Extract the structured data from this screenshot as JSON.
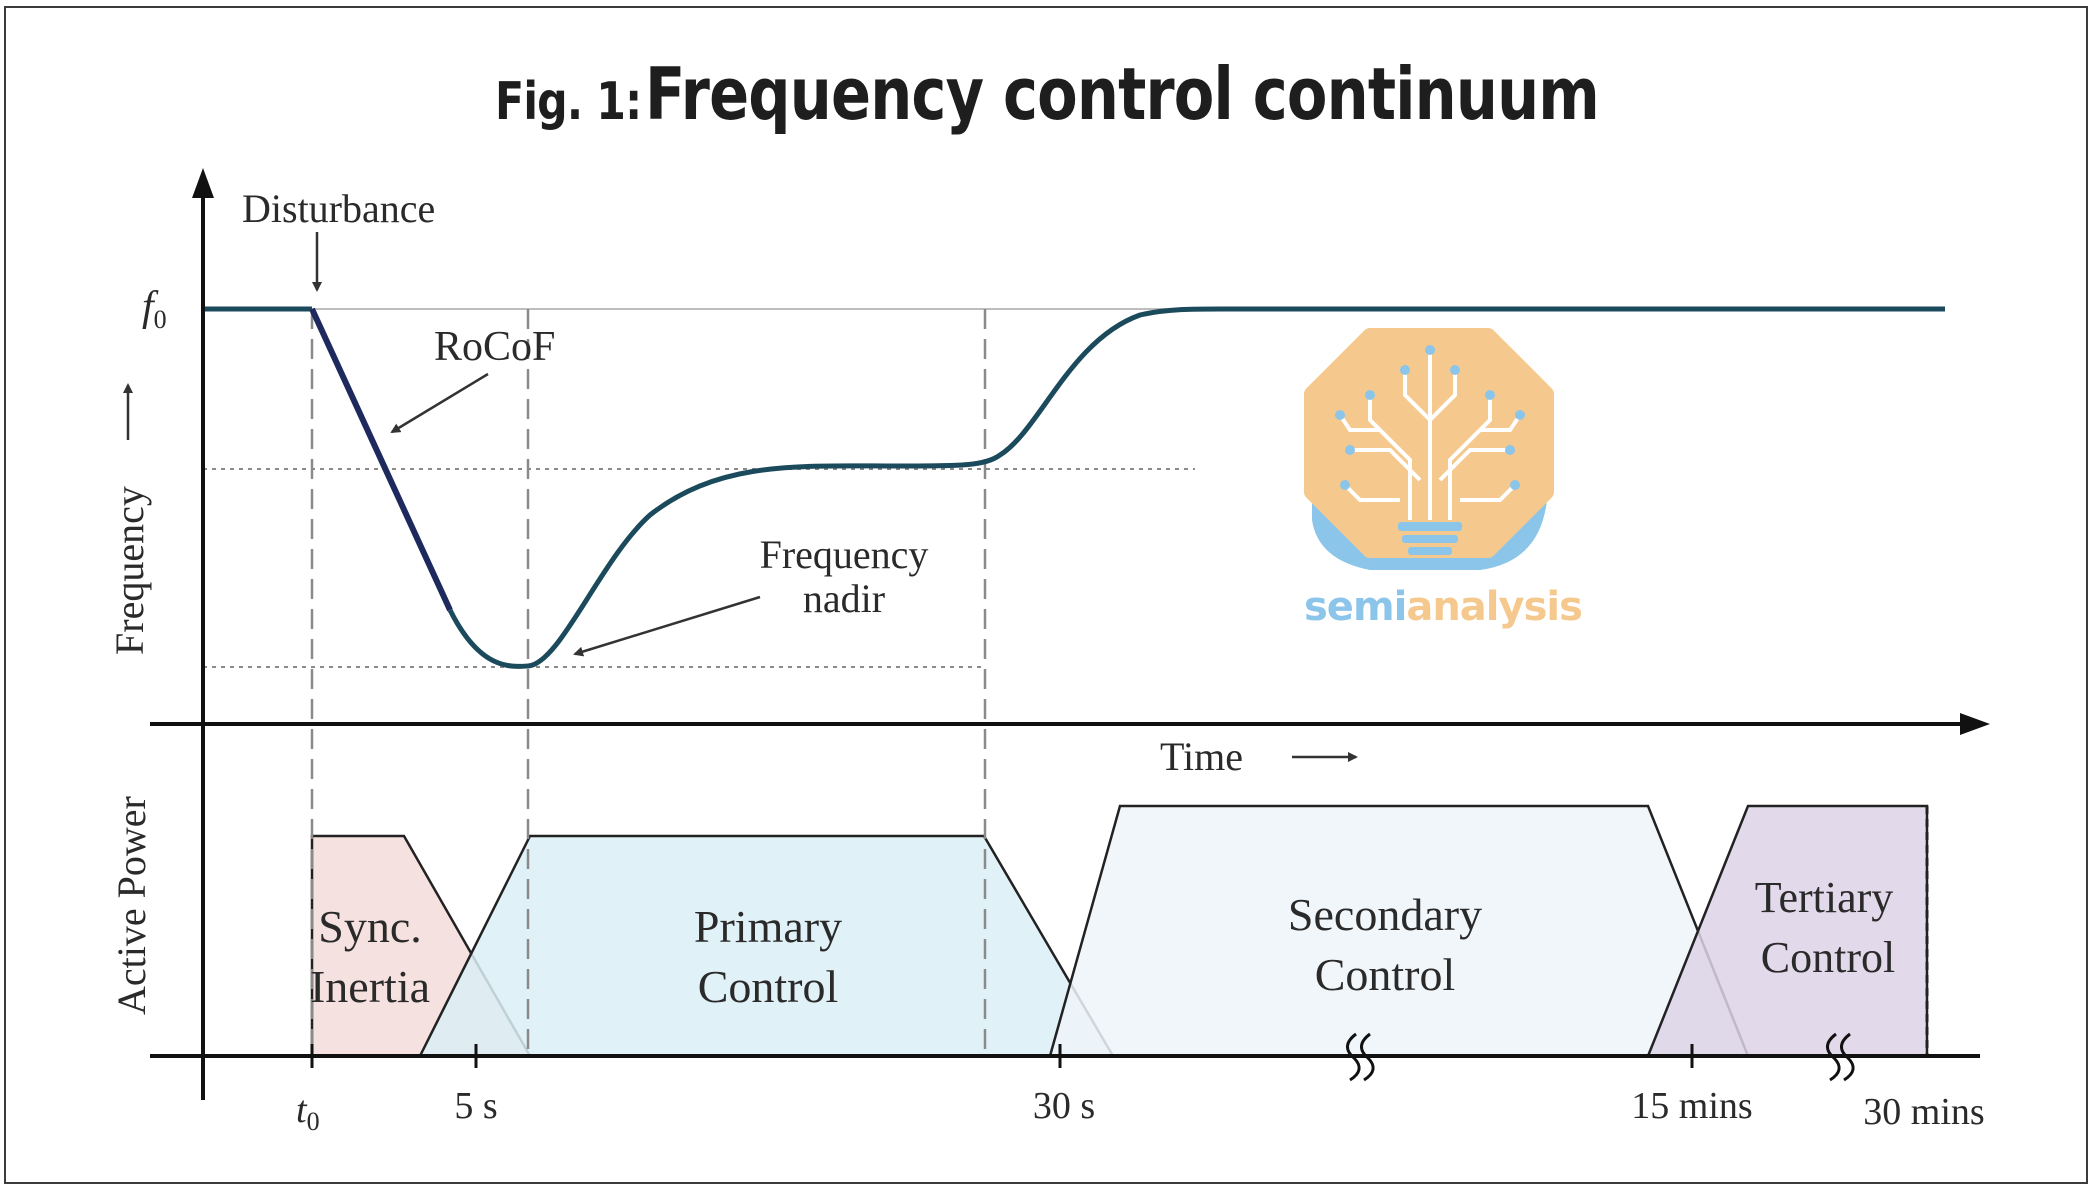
{
  "title": {
    "prefix": "Fig. 1:",
    "main": "Frequency control continuum"
  },
  "axes": {
    "frequency_label": "Frequency",
    "power_label": "Active Power",
    "time_label": "Time",
    "f0_label": "f0"
  },
  "annotations": {
    "disturbance": "Disturbance",
    "rocof": "RoCoF",
    "nadir_line1": "Frequency",
    "nadir_line2": "nadir"
  },
  "time_ticks": [
    "t0",
    "5 s",
    "30 s",
    "15 mins",
    "30 mins"
  ],
  "control_bands": [
    {
      "line1": "Sync.",
      "line2": "Inertia",
      "color": "#f3dcd9"
    },
    {
      "line1": "Primary",
      "line2": "Control",
      "color": "#dbeef6"
    },
    {
      "line1": "Secondary",
      "line2": "Control",
      "color": "#eef4f9"
    },
    {
      "line1": "Tertiary",
      "line2": "Control",
      "color": "#ddd3e6"
    }
  ],
  "logo": {
    "text_part1": "semi",
    "text_part2": "analysis",
    "colors": {
      "blue": "#8cc5ea",
      "orange": "#f5c98d"
    }
  },
  "colors": {
    "curve": "#1b4a5c",
    "rocof_segment": "#1e2a5e",
    "axis": "#111111",
    "guide": "#9a9a9a"
  }
}
